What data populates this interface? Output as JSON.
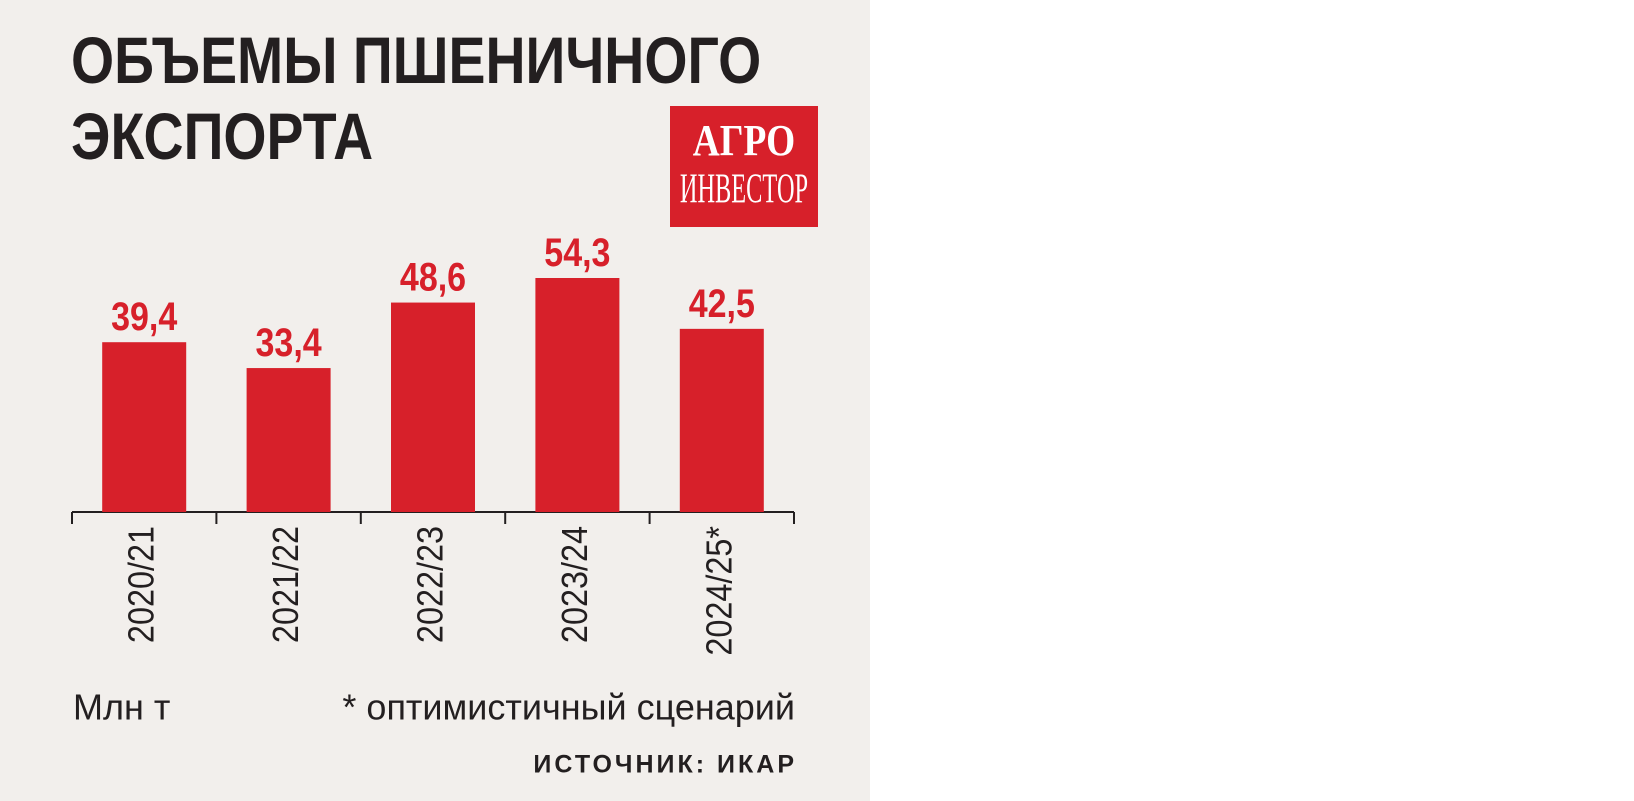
{
  "chart_data": {
    "type": "bar",
    "title": "ОБЪЕМЫ ПШЕНИЧНОГО ЭКСПОРТА",
    "categories": [
      "2020/21",
      "2021/22",
      "2022/23",
      "2023/24",
      "2024/25*"
    ],
    "values": [
      39.4,
      33.4,
      48.6,
      54.3,
      42.5
    ],
    "value_labels": [
      "39,4",
      "33,4",
      "48,6",
      "54,3",
      "42,5"
    ],
    "color": "#d7202a",
    "unit_label": "Млн т",
    "note": "* оптимистичный сценарий",
    "source": "ИСТОЧНИК: ИКАР"
  },
  "logo": [
    "АГРО",
    "ИНВЕСТОР"
  ]
}
